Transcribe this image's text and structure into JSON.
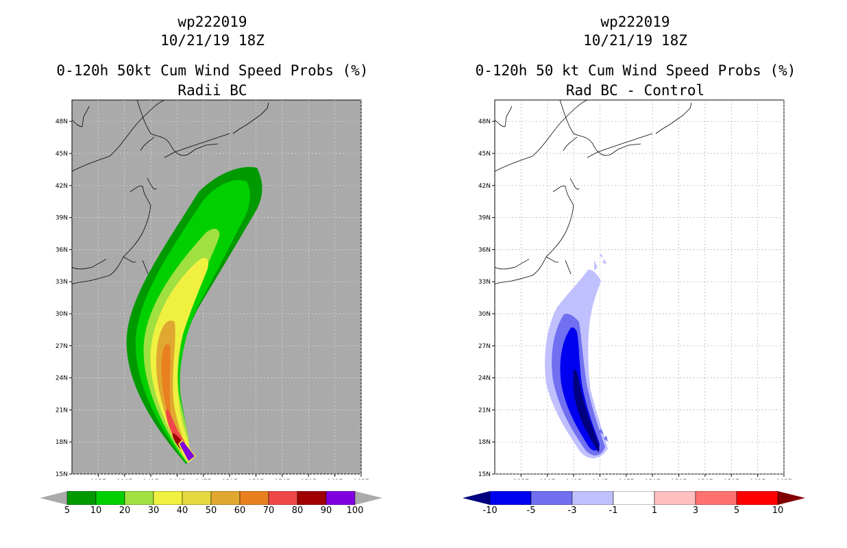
{
  "chart_data": [
    {
      "type": "heatmap",
      "storm_id": "wp222019",
      "date": "10/21/19 18Z",
      "title": "0-120h 50kt Cum Wind Speed Probs (%)",
      "subtitle": "Radii BC",
      "lat_ticks": [
        "48N",
        "45N",
        "42N",
        "39N",
        "36N",
        "33N",
        "30N",
        "27N",
        "24N",
        "21N",
        "18N",
        "15N"
      ],
      "lon_ticks": [
        "135E",
        "138E",
        "141E",
        "144E",
        "147E",
        "150E",
        "153E",
        "156E",
        "159E",
        "162E",
        "165E"
      ],
      "lat_range": [
        15,
        50
      ],
      "lon_range": [
        132,
        165
      ],
      "colorbar_labels": [
        "5",
        "10",
        "20",
        "30",
        "40",
        "50",
        "60",
        "70",
        "80",
        "90",
        "100"
      ],
      "colorbar_colors": [
        "#009a00",
        "#00d000",
        "#a0e040",
        "#f0f040",
        "#e6d840",
        "#e0a830",
        "#e88020",
        "#f04848",
        "#a00000",
        "#8000e0"
      ],
      "contour_levels": [
        5,
        10,
        20,
        30,
        40,
        50,
        60,
        70,
        80,
        90,
        100
      ],
      "background_color": "#aaaaaa"
    },
    {
      "type": "heatmap",
      "storm_id": "wp222019",
      "date": "10/21/19 18Z",
      "title": "0-120h 50 kt Cum Wind Speed Probs (%)",
      "subtitle": "Rad BC - Control",
      "lat_ticks": [
        "48N",
        "45N",
        "42N",
        "39N",
        "36N",
        "33N",
        "30N",
        "27N",
        "24N",
        "21N",
        "18N",
        "15N"
      ],
      "lon_ticks": [
        "135E",
        "138E",
        "141E",
        "144E",
        "147E",
        "150E",
        "153E",
        "156E",
        "159E",
        "162E",
        "165E"
      ],
      "lat_range": [
        15,
        50
      ],
      "lon_range": [
        132,
        165
      ],
      "colorbar_labels": [
        "-10",
        "-5",
        "-3",
        "-1",
        "1",
        "3",
        "5",
        "10"
      ],
      "colorbar_colors": [
        "#000080",
        "#0000f0",
        "#7070f0",
        "#c0c0ff",
        "#ffffff",
        "#ffc0c0",
        "#ff7070",
        "#ff0000",
        "#800000"
      ],
      "contour_levels": [
        -10,
        -5,
        -3,
        -1,
        1,
        3,
        5,
        10
      ],
      "background_color": "#ffffff"
    }
  ]
}
